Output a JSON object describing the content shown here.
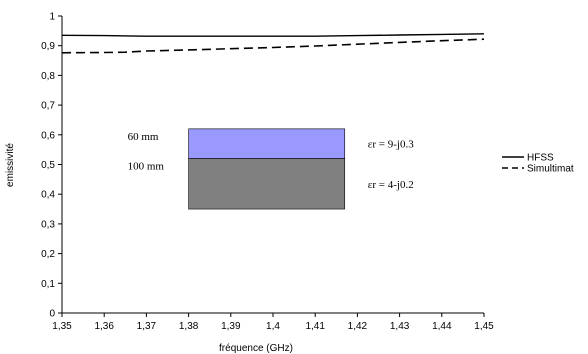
{
  "chart_data": {
    "type": "line",
    "xlabel": "fréquence (GHz)",
    "ylabel": "emissivité",
    "xlim": [
      1.35,
      1.45
    ],
    "ylim": [
      0,
      1
    ],
    "x_ticks": [
      "1,35",
      "1,36",
      "1,37",
      "1,38",
      "1,39",
      "1,4",
      "1,41",
      "1,42",
      "1,43",
      "1,44",
      "1,45"
    ],
    "y_ticks": [
      "0",
      "0,1",
      "0,2",
      "0,3",
      "0,4",
      "0,5",
      "0,6",
      "0,7",
      "0,8",
      "0,9",
      "1"
    ],
    "grid": false,
    "legend_position": "right",
    "series": [
      {
        "name": "HFSS",
        "style": "solid",
        "x": [
          1.35,
          1.36,
          1.37,
          1.38,
          1.39,
          1.4,
          1.41,
          1.42,
          1.43,
          1.44,
          1.45
        ],
        "y": [
          0.935,
          0.934,
          0.932,
          0.932,
          0.932,
          0.932,
          0.932,
          0.934,
          0.936,
          0.938,
          0.94
        ]
      },
      {
        "name": "Simultimat",
        "style": "dashed",
        "x": [
          1.35,
          1.36,
          1.365,
          1.37,
          1.38,
          1.39,
          1.4,
          1.41,
          1.42,
          1.43,
          1.44,
          1.45
        ],
        "y": [
          0.876,
          0.877,
          0.878,
          0.882,
          0.886,
          0.89,
          0.894,
          0.899,
          0.905,
          0.911,
          0.917,
          0.922
        ]
      }
    ],
    "inset": {
      "layers": [
        {
          "thickness_label": "60 mm",
          "permittivity_label": "εr = 9-j0.3",
          "color": "#9999ff",
          "y_top": 0.62,
          "y_bottom": 0.52
        },
        {
          "thickness_label": "100 mm",
          "permittivity_label": "εr = 4-j0.2",
          "color": "#808080",
          "y_top": 0.52,
          "y_bottom": 0.35
        }
      ],
      "x_left": 1.38,
      "x_right": 1.417
    }
  }
}
